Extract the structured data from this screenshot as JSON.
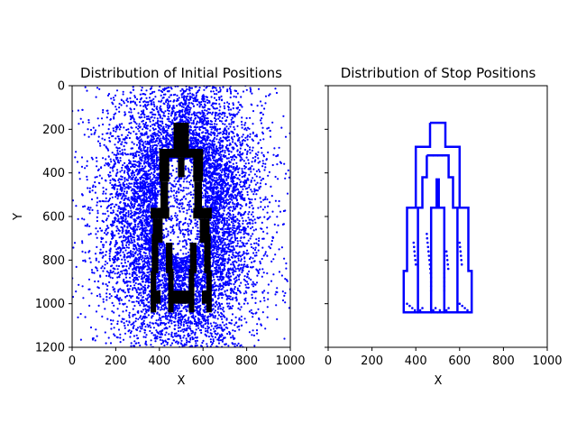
{
  "chart_data": [
    {
      "type": "scatter",
      "title": "Distribution of Initial Positions",
      "xlabel": "X",
      "ylabel": "Y",
      "xlim": [
        0,
        1000
      ],
      "ylim": [
        1200,
        0
      ],
      "y_inverted": true,
      "xticks": [
        0,
        200,
        400,
        600,
        800,
        1000
      ],
      "yticks": [
        0,
        200,
        400,
        600,
        800,
        1000,
        1200
      ],
      "grid": false,
      "legend": "none",
      "series_color": "#0000ff",
      "obstacle_color": "#000000",
      "scatter_distribution": {
        "count": 9000,
        "center": [
          500,
          600
        ],
        "spread": [
          170,
          330
        ],
        "hollow_center": [
          500,
          560
        ],
        "hollow_radius": [
          110,
          230
        ]
      },
      "obstacles": [
        {
          "x": [
            465,
            535
          ],
          "y": [
            170,
            330
          ]
        },
        {
          "x": [
            400,
            600
          ],
          "y": [
            290,
            330
          ]
        },
        {
          "x": [
            400,
            445
          ],
          "y": [
            290,
            440
          ]
        },
        {
          "x": [
            555,
            600
          ],
          "y": [
            290,
            440
          ]
        },
        {
          "x": [
            405,
            440
          ],
          "y": [
            440,
            570
          ]
        },
        {
          "x": [
            560,
            595
          ],
          "y": [
            440,
            570
          ]
        },
        {
          "x": [
            485,
            515
          ],
          "y": [
            330,
            420
          ]
        },
        {
          "x": [
            360,
            445
          ],
          "y": [
            560,
            610
          ]
        },
        {
          "x": [
            555,
            640
          ],
          "y": [
            560,
            610
          ]
        },
        {
          "x": [
            370,
            415
          ],
          "y": [
            610,
            720
          ]
        },
        {
          "x": [
            585,
            630
          ],
          "y": [
            610,
            720
          ]
        },
        {
          "x": [
            360,
            385
          ],
          "y": [
            850,
            1040
          ]
        },
        {
          "x": [
            440,
            465
          ],
          "y": [
            840,
            1040
          ]
        },
        {
          "x": [
            535,
            560
          ],
          "y": [
            840,
            1040
          ]
        },
        {
          "x": [
            615,
            640
          ],
          "y": [
            850,
            1040
          ]
        },
        {
          "x": [
            365,
            395
          ],
          "y": [
            680,
            860
          ]
        },
        {
          "x": [
            605,
            635
          ],
          "y": [
            680,
            860
          ]
        },
        {
          "x": [
            430,
            460
          ],
          "y": [
            720,
            860
          ]
        },
        {
          "x": [
            540,
            570
          ],
          "y": [
            720,
            860
          ]
        },
        {
          "x": [
            375,
            405
          ],
          "y": [
            940,
            1000
          ]
        },
        {
          "x": [
            455,
            500
          ],
          "y": [
            940,
            1000
          ]
        },
        {
          "x": [
            500,
            545
          ],
          "y": [
            940,
            1000
          ]
        },
        {
          "x": [
            595,
            625
          ],
          "y": [
            940,
            1000
          ]
        }
      ]
    },
    {
      "type": "scatter",
      "title": "Distribution of Stop Positions",
      "xlabel": "X",
      "ylabel": "",
      "xlim": [
        0,
        1000
      ],
      "ylim": [
        1200,
        0
      ],
      "y_inverted": true,
      "xticks": [
        0,
        200,
        400,
        600,
        800,
        1000
      ],
      "yticks": [
        0,
        200,
        400,
        600,
        800,
        1000,
        1200
      ],
      "sharey": true,
      "grid": false,
      "legend": "none",
      "series_color": "#0000ff",
      "stop_outline": [
        [
          465,
          170
        ],
        [
          535,
          170
        ],
        [
          535,
          280
        ],
        [
          600,
          280
        ],
        [
          600,
          560
        ],
        [
          640,
          560
        ],
        [
          640,
          850
        ],
        [
          655,
          850
        ],
        [
          655,
          1040
        ],
        [
          345,
          1040
        ],
        [
          345,
          850
        ],
        [
          360,
          850
        ],
        [
          360,
          560
        ],
        [
          400,
          560
        ],
        [
          400,
          280
        ],
        [
          465,
          280
        ],
        [
          465,
          170
        ]
      ],
      "inner_outline": [
        [
          450,
          320
        ],
        [
          550,
          320
        ],
        [
          550,
          420
        ],
        [
          570,
          420
        ],
        [
          570,
          560
        ],
        [
          590,
          560
        ],
        [
          590,
          1040
        ],
        [
          530,
          1040
        ],
        [
          530,
          560
        ],
        [
          505,
          560
        ],
        [
          505,
          430
        ],
        [
          495,
          430
        ],
        [
          495,
          560
        ],
        [
          470,
          560
        ],
        [
          470,
          1040
        ],
        [
          410,
          1040
        ],
        [
          410,
          560
        ],
        [
          430,
          560
        ],
        [
          430,
          420
        ],
        [
          450,
          420
        ],
        [
          450,
          320
        ]
      ],
      "stop_dots": [
        [
          360,
          1000
        ],
        [
          372,
          1010
        ],
        [
          384,
          1020
        ],
        [
          396,
          1030
        ],
        [
          410,
          1040
        ],
        [
          420,
          1030
        ],
        [
          430,
          1020
        ],
        [
          390,
          720
        ],
        [
          392,
          740
        ],
        [
          394,
          760
        ],
        [
          396,
          780
        ],
        [
          398,
          800
        ],
        [
          400,
          820
        ],
        [
          450,
          680
        ],
        [
          452,
          700
        ],
        [
          454,
          720
        ],
        [
          456,
          740
        ],
        [
          458,
          760
        ],
        [
          460,
          780
        ],
        [
          462,
          800
        ],
        [
          464,
          820
        ],
        [
          466,
          840
        ],
        [
          468,
          860
        ],
        [
          470,
          860
        ],
        [
          470,
          880
        ],
        [
          470,
          900
        ],
        [
          470,
          920
        ],
        [
          470,
          940
        ],
        [
          530,
          860
        ],
        [
          530,
          880
        ],
        [
          530,
          900
        ],
        [
          530,
          920
        ],
        [
          530,
          940
        ],
        [
          540,
          760
        ],
        [
          542,
          780
        ],
        [
          544,
          800
        ],
        [
          546,
          820
        ],
        [
          548,
          840
        ],
        [
          600,
          720
        ],
        [
          602,
          740
        ],
        [
          604,
          760
        ],
        [
          606,
          780
        ],
        [
          608,
          800
        ],
        [
          610,
          820
        ],
        [
          480,
          320
        ],
        [
          500,
          320
        ],
        [
          520,
          320
        ],
        [
          530,
          1040
        ],
        [
          540,
          1030
        ],
        [
          550,
          1020
        ],
        [
          600,
          1000
        ],
        [
          612,
          1010
        ],
        [
          624,
          1020
        ],
        [
          636,
          1030
        ],
        [
          648,
          1040
        ],
        [
          470,
          1040
        ],
        [
          480,
          1030
        ],
        [
          490,
          1020
        ],
        [
          500,
          1040
        ],
        [
          510,
          1030
        ]
      ]
    }
  ]
}
